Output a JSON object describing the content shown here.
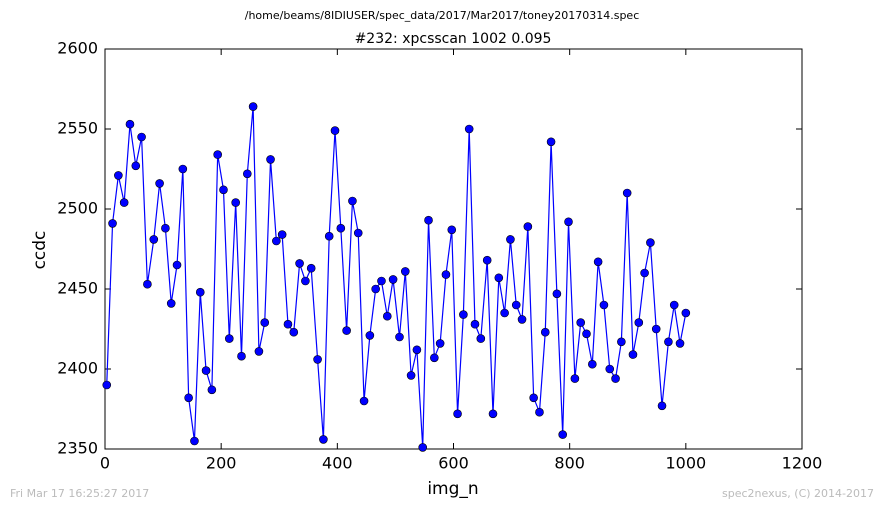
{
  "chart_data": {
    "type": "line",
    "title": "/home/beams/8IDIUSER/spec_data/2017/Mar2017/toney20170314.spec",
    "subtitle": "#232: xpcsscan 1002 0.095",
    "xlabel": "img_n",
    "ylabel": "ccdc",
    "footer_left": "Fri Mar 17 16:25:27 2017",
    "footer_right": "spec2nexus, (C) 2014-2017",
    "x": [
      3,
      13,
      23,
      33,
      43,
      53,
      63,
      73,
      84,
      94,
      104,
      114,
      124,
      134,
      144,
      154,
      164,
      174,
      184,
      194,
      204,
      214,
      225,
      235,
      245,
      255,
      265,
      275,
      285,
      295,
      305,
      315,
      325,
      335,
      345,
      355,
      366,
      376,
      386,
      396,
      406,
      416,
      426,
      436,
      446,
      456,
      466,
      476,
      486,
      496,
      507,
      517,
      527,
      537,
      547,
      557,
      567,
      577,
      587,
      597,
      607,
      617,
      627,
      637,
      647,
      658,
      668,
      678,
      688,
      698,
      708,
      718,
      728,
      738,
      748,
      758,
      768,
      778,
      788,
      798,
      809,
      819,
      829,
      839,
      849,
      859,
      869,
      879,
      889,
      899,
      909,
      919,
      929,
      939,
      949,
      959,
      970,
      980,
      990,
      1000
    ],
    "series": [
      {
        "name": "ccdc",
        "color": "#0000ff",
        "values": [
          2390,
          2491,
          2521,
          2504,
          2553,
          2527,
          2545,
          2453,
          2481,
          2516,
          2488,
          2441,
          2465,
          2525,
          2382,
          2355,
          2448,
          2399,
          2387,
          2534,
          2512,
          2419,
          2504,
          2408,
          2522,
          2564,
          2411,
          2429,
          2531,
          2480,
          2484,
          2428,
          2423,
          2466,
          2455,
          2463,
          2406,
          2356,
          2483,
          2549,
          2488,
          2424,
          2505,
          2485,
          2380,
          2421,
          2450,
          2455,
          2433,
          2456,
          2420,
          2461,
          2396,
          2412,
          2351,
          2493,
          2407,
          2416,
          2459,
          2487,
          2372,
          2434,
          2550,
          2428,
          2419,
          2468,
          2372,
          2457,
          2435,
          2481,
          2440,
          2431,
          2489,
          2382,
          2373,
          2423,
          2542,
          2447,
          2359,
          2492,
          2394,
          2429,
          2422,
          2403,
          2467,
          2440,
          2400,
          2394,
          2417,
          2510,
          2409,
          2429,
          2460,
          2479,
          2425,
          2377,
          2417,
          2440,
          2416,
          2435
        ]
      }
    ],
    "xlim": [
      0,
      1200
    ],
    "xticks": [
      0,
      200,
      400,
      600,
      800,
      1000,
      1200
    ],
    "ylim": [
      2350,
      2600
    ],
    "yticks": [
      2350,
      2400,
      2450,
      2500,
      2550,
      2600
    ],
    "grid": false
  }
}
